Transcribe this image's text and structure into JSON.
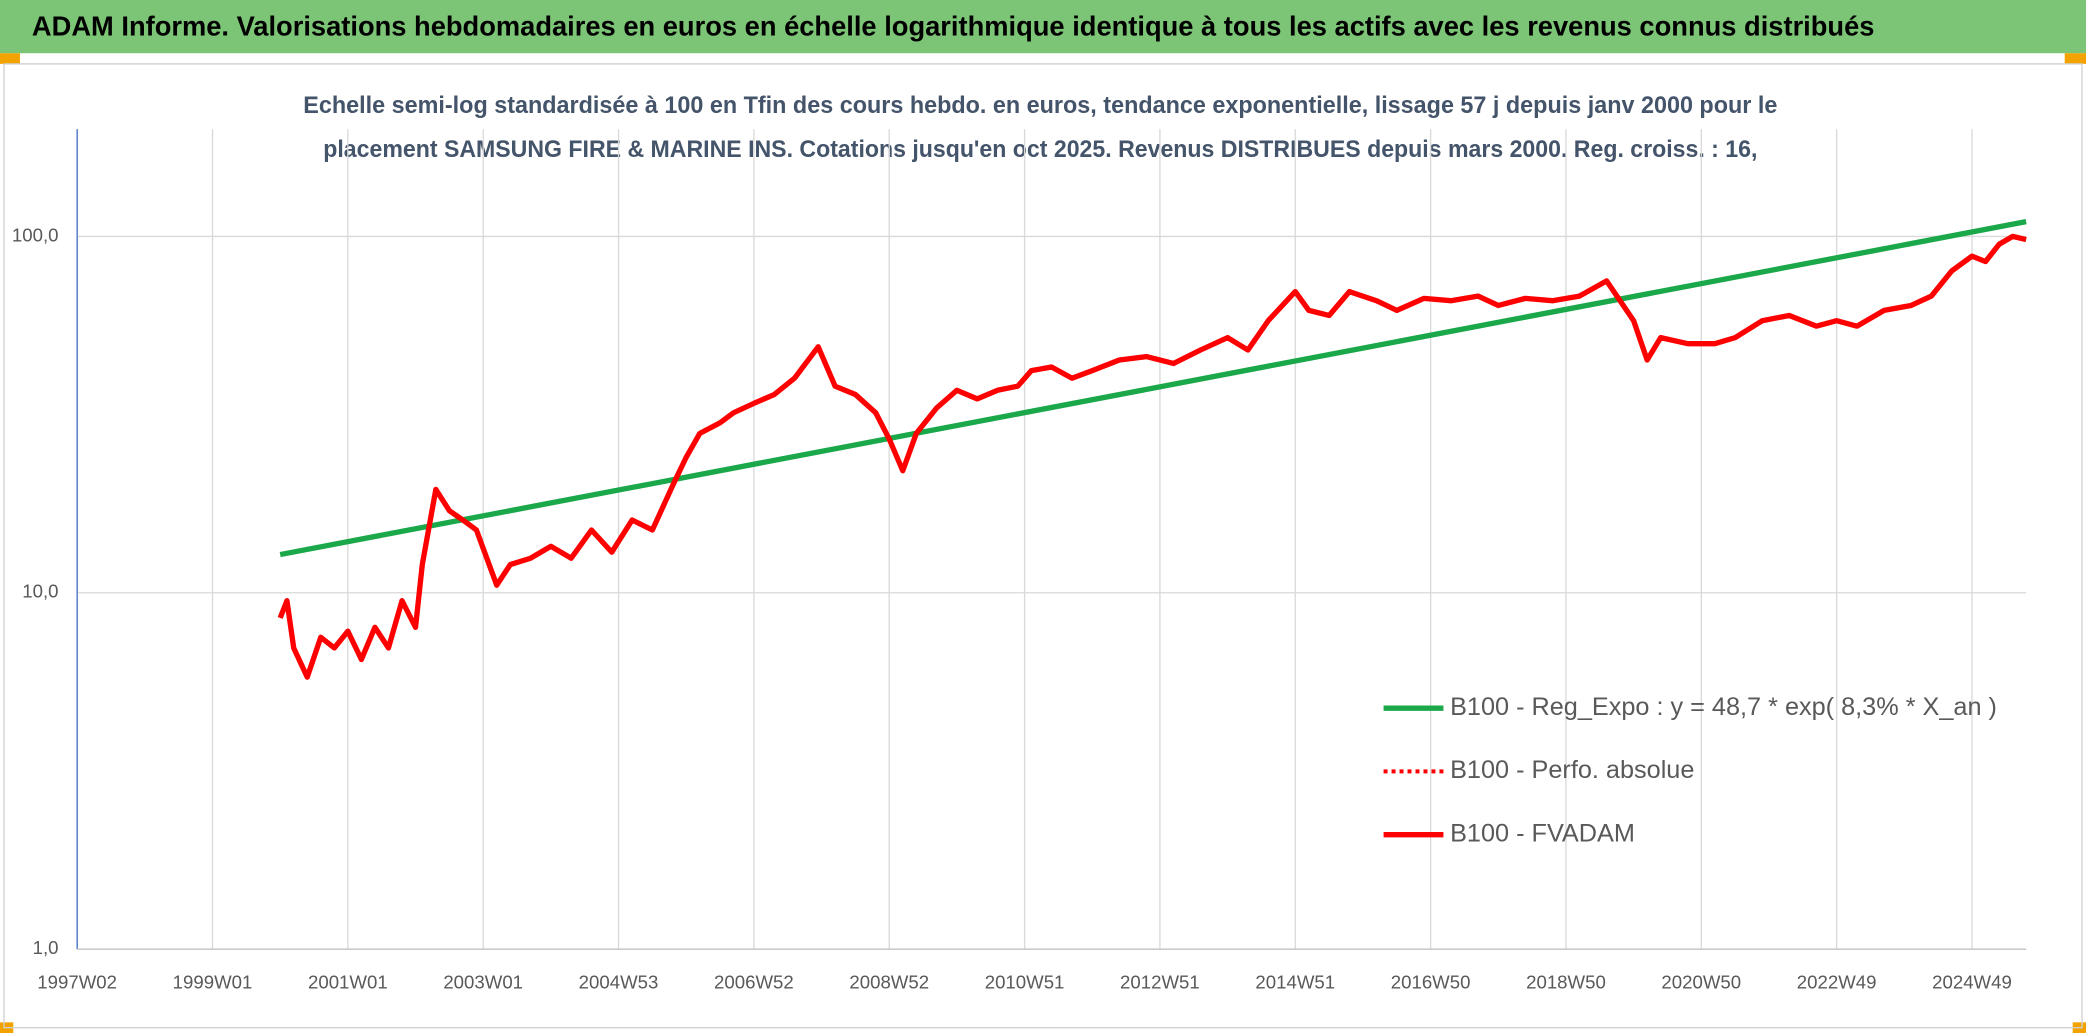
{
  "header": {
    "title": "ADAM Informe. Valorisations hebdomadaires en euros en échelle logarithmique identique à tous les actifs avec les revenus connus distribués"
  },
  "chart_data": {
    "type": "line",
    "subtitle": [
      "Echelle semi-log standardisée à 100 en Tfin des cours hebdo. en euros, tendance exponentielle, lissage 57 j depuis janv 2000 pour le",
      "placement SAMSUNG FIRE & MARINE INS. Cotations jusqu'en oct 2025. Revenus DISTRIBUES depuis mars 2000. Reg. croiss. : 16,"
    ],
    "log_y": true,
    "grid": true,
    "legend": "lower right",
    "xlim": [
      1997.0,
      2025.8
    ],
    "xticks": [
      {
        "value": 1997.0,
        "label": "1997W02"
      },
      {
        "value": 1999.0,
        "label": "1999W01"
      },
      {
        "value": 2001.0,
        "label": "2001W01"
      },
      {
        "value": 2003.0,
        "label": "2003W01"
      },
      {
        "value": 2005.0,
        "label": "2004W53"
      },
      {
        "value": 2007.0,
        "label": "2006W52"
      },
      {
        "value": 2009.0,
        "label": "2008W52"
      },
      {
        "value": 2011.0,
        "label": "2010W51"
      },
      {
        "value": 2013.0,
        "label": "2012W51"
      },
      {
        "value": 2015.0,
        "label": "2014W51"
      },
      {
        "value": 2017.0,
        "label": "2016W50"
      },
      {
        "value": 2019.0,
        "label": "2018W50"
      },
      {
        "value": 2021.0,
        "label": "2020W50"
      },
      {
        "value": 2023.0,
        "label": "2022W49"
      },
      {
        "value": 2025.0,
        "label": "2024W49"
      }
    ],
    "ylim": [
      1,
      200
    ],
    "yticks": [
      {
        "value": 1,
        "label": "1,0"
      },
      {
        "value": 10,
        "label": "10,0"
      },
      {
        "value": 100,
        "label": "100,0"
      }
    ],
    "series": [
      {
        "name": "B100 - Reg_Expo : y = 48,7 * exp( 8,3% *  X_an )",
        "color": "#1aa84a",
        "dash": "solid",
        "x": [
          2000.0,
          2025.8
        ],
        "values": [
          12.8,
          110
        ]
      },
      {
        "name": "B100 - Perfo. absolue",
        "color": "#ff0000",
        "dash": "dotted"
      },
      {
        "name": "B100 - FVADAM",
        "color": "#ff0000",
        "dash": "solid",
        "x": [
          2000.0,
          2000.1,
          2000.2,
          2000.4,
          2000.6,
          2000.8,
          2001.0,
          2001.2,
          2001.4,
          2001.6,
          2001.8,
          2002.0,
          2002.1,
          2002.3,
          2002.5,
          2002.7,
          2002.9,
          2003.2,
          2003.4,
          2003.7,
          2004.0,
          2004.3,
          2004.6,
          2004.9,
          2005.2,
          2005.5,
          2005.8,
          2006.0,
          2006.2,
          2006.5,
          2006.7,
          2007.0,
          2007.3,
          2007.6,
          2007.95,
          2008.2,
          2008.5,
          2008.8,
          2009.0,
          2009.2,
          2009.4,
          2009.7,
          2010.0,
          2010.3,
          2010.6,
          2010.9,
          2011.1,
          2011.4,
          2011.7,
          2012.0,
          2012.4,
          2012.8,
          2013.2,
          2013.6,
          2014.0,
          2014.3,
          2014.6,
          2015.0,
          2015.2,
          2015.5,
          2015.8,
          2016.2,
          2016.5,
          2016.9,
          2017.3,
          2017.7,
          2018.0,
          2018.4,
          2018.8,
          2019.2,
          2019.6,
          2019.8,
          2020.0,
          2020.2,
          2020.4,
          2020.8,
          2021.2,
          2021.5,
          2021.9,
          2022.3,
          2022.7,
          2023.0,
          2023.3,
          2023.7,
          2024.1,
          2024.4,
          2024.7,
          2025.0,
          2025.2,
          2025.4,
          2025.6,
          2025.8
        ],
        "values": [
          8.5,
          9.5,
          7.0,
          5.8,
          7.5,
          7.0,
          7.8,
          6.5,
          8.0,
          7.0,
          9.5,
          8.0,
          12,
          19.5,
          17,
          16,
          15,
          10.5,
          12,
          12.5,
          13.5,
          12.5,
          15,
          13,
          16,
          15,
          20,
          24,
          28,
          30,
          32,
          34,
          36,
          40,
          49,
          38,
          36,
          32,
          27,
          22,
          28,
          33,
          37,
          35,
          37,
          38,
          42,
          43,
          40,
          42,
          45,
          46,
          44,
          48,
          52,
          48,
          58,
          70,
          62,
          60,
          70,
          66,
          62,
          67,
          66,
          68,
          64,
          67,
          66,
          68,
          75,
          66,
          58,
          45,
          52,
          50,
          50,
          52,
          58,
          60,
          56,
          58,
          56,
          62,
          64,
          68,
          80,
          88,
          85,
          95,
          100,
          98
        ]
      }
    ]
  }
}
